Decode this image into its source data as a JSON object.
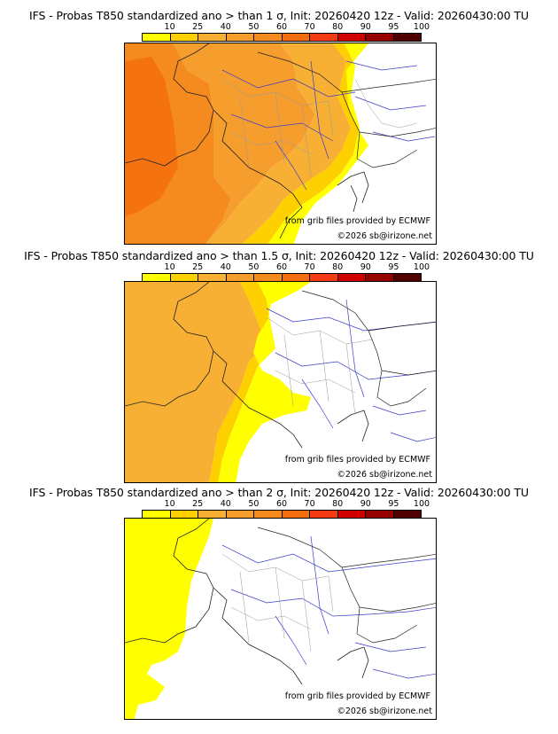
{
  "legend": {
    "labels": [
      "10",
      "25",
      "40",
      "50",
      "60",
      "70",
      "80",
      "90",
      "95",
      "100"
    ],
    "colors": [
      "#ffff00",
      "#ffd000",
      "#f7b033",
      "#f59e2e",
      "#f58a1f",
      "#f46d0e",
      "#f43c14",
      "#d00000",
      "#950000",
      "#500000"
    ]
  },
  "panels": [
    {
      "title": "IFS - Probas T850  standardized ano > than 1 σ, Init: 20260420 12z - Valid: 20260430:00 TU",
      "threshold": "1 σ"
    },
    {
      "title": "IFS - Probas T850  standardized ano > than 1.5 σ, Init: 20260420 12z - Valid: 20260430:00 TU",
      "threshold": "1.5 σ"
    },
    {
      "title": "IFS - Probas T850  standardized ano > than 2 σ, Init: 20260420 12z - Valid: 20260430:00 TU",
      "threshold": "2 σ"
    }
  ],
  "credits": {
    "grib": "from grib files provided by ECMWF",
    "copyright": "©2026 sb@irizone.net"
  },
  "map_colors": {
    "land_border": "#222222",
    "river": "#3a3acc",
    "admin": "#999999",
    "sea_none": "#ffffff"
  }
}
